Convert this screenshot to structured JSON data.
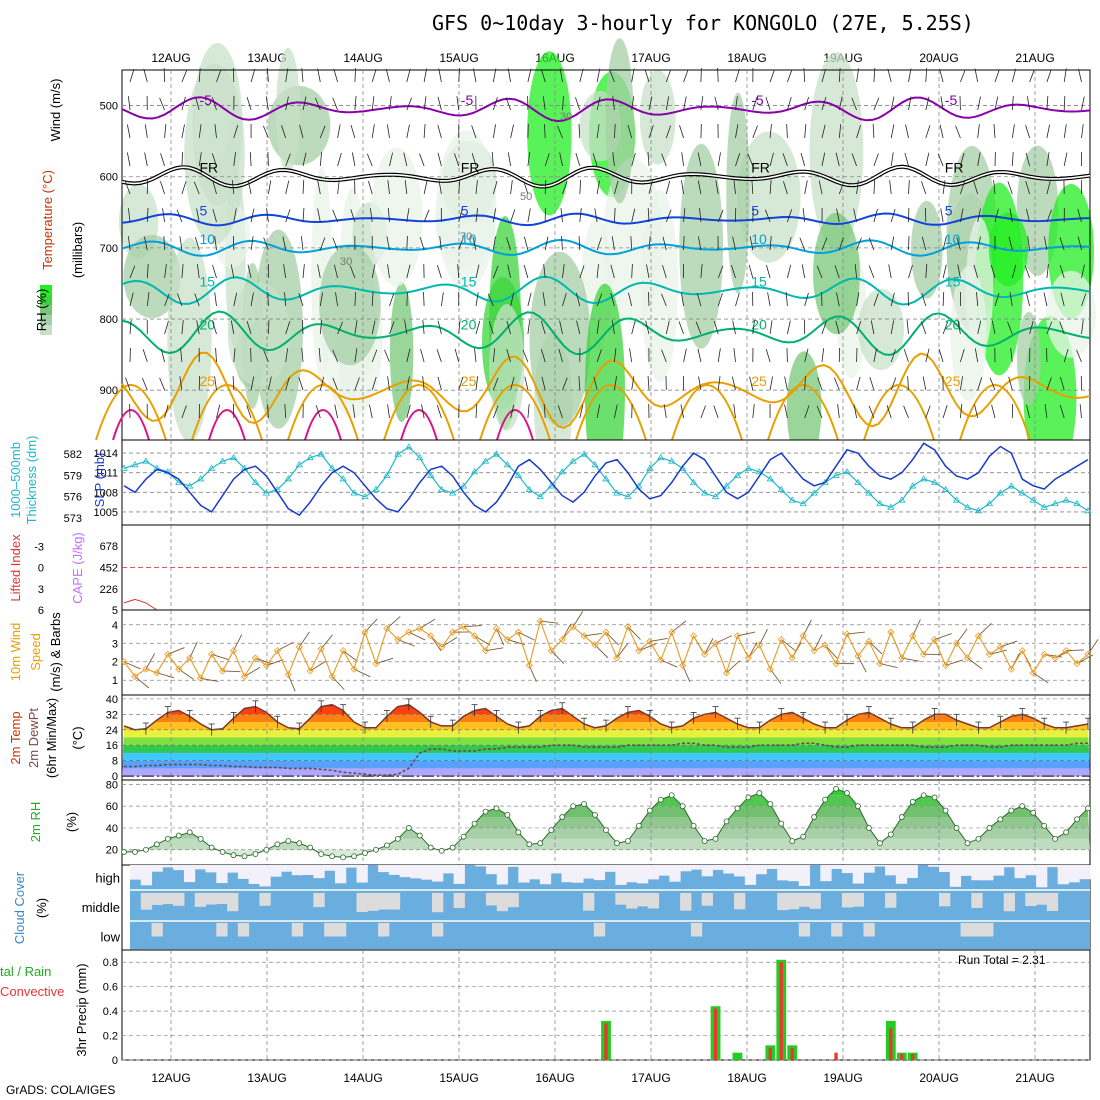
{
  "title": "GFS 0~10day 3-hourly for KONGOLO (27E, 5.25S)",
  "footer": "GrADS: COLA/IGES",
  "run_total_label": "Run Total = 2.31",
  "dates": [
    "12AUG",
    "13AUG",
    "14AUG",
    "15AUG",
    "16AUG",
    "17AUG",
    "18AUG",
    "19AUG",
    "20AUG",
    "21AUG"
  ],
  "panel_labels": {
    "p1_wind": "Wind (m/s)",
    "p1_temp": "Temperature (°C)",
    "p1_mb": "(millibars)",
    "p1_rh": "RH (%)",
    "p2_thick": "1000–500mb",
    "p2_thick2": "Thickness (dm)",
    "p2_slp": "SLP (mb)",
    "p3_li": "Lifted Index",
    "p3_cape": "CAPE (J/kg)",
    "p4_a": "10m Wind",
    "p4_b": "Speed",
    "p4_c": "(m/s) & Barbs",
    "p5_a": "2m Temp",
    "p5_b": "2m DewPt",
    "p5_c": "(6hr Min/Max)",
    "p5_d": "(°C)",
    "p6_a": "2m RH",
    "p6_b": "(%)",
    "p7_a": "Cloud Cover",
    "p7_b": "(%)",
    "p8_a": "tal / Rain",
    "p8_b": "Convective",
    "p8_c": "3hr Precip (mm)"
  },
  "chart_data": [
    {
      "panel": "upper-air",
      "type": "heatmap",
      "ylabel": "(millibars)",
      "y_ticks": [
        500,
        600,
        700,
        800,
        900
      ],
      "ylim": [
        970,
        450
      ],
      "freezing_label": "FR",
      "isotherm_labels": [
        "-5",
        "5",
        "10",
        "15",
        "20",
        "25"
      ],
      "rh_labels": [
        "30",
        "50",
        "70"
      ]
    },
    {
      "panel": "thickness-slp",
      "type": "line",
      "thickness_ticks": [
        573,
        576,
        579,
        582
      ],
      "slp_ticks": [
        1005,
        1008,
        1011,
        1014
      ],
      "series": [
        {
          "name": "1000-500mb Thickness (dm)",
          "values": [
            580,
            580.5,
            581,
            580,
            579.5,
            578,
            577.5,
            578.5,
            580,
            581,
            581.5,
            580,
            578,
            576.5,
            577,
            578.5,
            580.5,
            581.5,
            582,
            580,
            578.5,
            576.5,
            576,
            577,
            579,
            582,
            583,
            581.5,
            579,
            577,
            576.5,
            577.5,
            579.5,
            581,
            582,
            580.5,
            579,
            577,
            576,
            577.5,
            579.5,
            581,
            582,
            580.5,
            578.5,
            576.5,
            576,
            577.5,
            580,
            581.5,
            581,
            580,
            578,
            576.5,
            576,
            577.5,
            579,
            580,
            579.5,
            578.5,
            577,
            575.5,
            575,
            576.5,
            578,
            579,
            579.5,
            578,
            576.5,
            575,
            574.5,
            575.5,
            577.5,
            578.5,
            578,
            577,
            575.5,
            574.5,
            574,
            575,
            576.5,
            577.5,
            576.5,
            575.5,
            574.5,
            575,
            575.5,
            575,
            574
          ]
        },
        {
          "name": "SLP (mb)",
          "values": [
            1009,
            1008,
            1010,
            1011.5,
            1011,
            1010,
            1008,
            1006,
            1005,
            1007.5,
            1010,
            1011.5,
            1012,
            1010.5,
            1008,
            1005.5,
            1004.5,
            1006.5,
            1009,
            1011,
            1012,
            1011,
            1009,
            1007,
            1005.5,
            1005,
            1007,
            1009.5,
            1011.5,
            1012,
            1010.5,
            1008,
            1006,
            1005,
            1006.5,
            1009,
            1012,
            1013,
            1011.5,
            1009.5,
            1007.5,
            1006.5,
            1008,
            1010.5,
            1012.5,
            1013,
            1011,
            1008.5,
            1007,
            1007.5,
            1009.5,
            1012,
            1014,
            1013,
            1010.5,
            1008,
            1007,
            1008,
            1010.5,
            1013,
            1014,
            1012,
            1010,
            1009,
            1009.5,
            1012,
            1014.5,
            1014,
            1012,
            1010.5,
            1010,
            1011,
            1013,
            1015.5,
            1014.5,
            1012,
            1010.5,
            1010,
            1011,
            1013.5,
            1015,
            1014,
            1010,
            1009,
            1008.5,
            1010,
            1011,
            1012,
            1013
          ]
        }
      ]
    },
    {
      "panel": "cape-li",
      "type": "bar",
      "li_ticks": [
        6,
        3,
        0,
        -3
      ],
      "cape_ticks": [
        5,
        226,
        452,
        678
      ],
      "series": [
        {
          "name": "CAPE (J/kg)",
          "values": [
            0,
            0,
            0,
            0,
            0,
            0,
            0,
            0,
            0,
            0,
            0,
            0,
            0,
            0,
            0,
            0,
            0,
            0,
            0,
            0,
            0,
            0,
            0,
            0,
            0,
            0,
            0,
            0,
            0,
            0,
            0,
            0,
            0,
            0,
            0,
            0,
            0,
            0,
            0,
            0,
            0,
            0,
            0,
            0,
            0,
            0,
            0,
            0,
            0,
            0,
            0,
            0,
            0,
            0,
            0,
            0,
            0,
            0,
            0,
            0,
            0,
            0,
            0,
            0,
            0,
            0,
            0,
            0,
            0,
            0,
            0,
            0,
            0,
            0,
            0,
            0,
            0,
            0,
            0,
            0,
            0,
            0,
            0,
            0,
            0,
            0,
            0,
            0,
            0
          ]
        },
        {
          "name": "Lifted Index",
          "values": [
            5,
            4.5,
            5,
            6,
            6,
            6,
            6,
            6,
            6,
            6,
            6,
            6,
            6,
            6,
            6,
            6,
            6,
            6,
            6,
            6,
            6,
            6,
            6,
            6,
            6,
            6,
            6,
            6,
            6,
            6,
            6,
            6,
            6,
            6,
            6,
            6,
            6,
            6,
            6,
            6,
            6,
            6,
            6,
            6,
            6,
            6,
            6,
            6,
            6,
            6,
            6,
            6,
            6,
            6,
            6,
            6,
            6,
            6,
            6,
            6,
            6,
            6,
            6,
            6,
            6,
            6,
            6,
            6,
            6,
            6,
            6,
            6,
            6,
            6,
            6,
            6,
            6,
            6,
            6,
            6,
            6,
            6,
            6,
            6,
            6,
            6,
            6,
            6,
            6
          ]
        }
      ]
    },
    {
      "panel": "wind10m",
      "type": "line",
      "y_ticks": [
        1,
        2,
        3,
        4
      ],
      "series": [
        {
          "name": "10m Wind Speed (m/s)",
          "values": [
            2,
            1.2,
            1.6,
            1.4,
            2.4,
            1.6,
            2.2,
            1.1,
            2.4,
            1.5,
            2.6,
            1.2,
            2.2,
            1.8,
            2.6,
            1.3,
            2.8,
            1.5,
            2.7,
            1.2,
            2.6,
            1.6,
            3.6,
            1.9,
            3.8,
            3.2,
            3.6,
            3.8,
            3.4,
            2.8,
            3.6,
            3.9,
            3.4,
            2.6,
            3.8,
            3.2,
            3.6,
            1.8,
            4.2,
            2.6,
            3.2,
            3.9,
            3.4,
            2.9,
            3.6,
            2.2,
            3.9,
            2.6,
            3.1,
            2.1,
            3.6,
            1.8,
            3.4,
            2.4,
            3.0,
            1.4,
            3.4,
            2.2,
            2.9,
            1.6,
            3.2,
            2.2,
            3.4,
            2.6,
            2.9,
            1.9,
            3.5,
            2.3,
            3.1,
            1.9,
            3.6,
            2.2,
            3.4,
            2.4,
            3.2,
            1.8,
            3.0,
            2.2,
            3.4,
            2.4,
            2.8,
            1.6,
            2.6,
            1.4,
            2.4,
            2.2,
            2.6,
            1.9,
            2.4
          ]
        }
      ]
    },
    {
      "panel": "temp2m",
      "type": "area",
      "ylabel": "(°C)",
      "y_ticks": [
        0,
        8,
        16,
        24,
        32,
        40
      ],
      "series": [
        {
          "name": "2m Temp",
          "values": [
            26,
            24,
            24.5,
            29,
            33,
            34,
            31,
            27,
            24,
            24.5,
            30,
            35,
            36,
            33,
            28,
            25,
            24.5,
            30,
            36,
            37,
            34,
            28,
            25,
            25,
            31,
            36,
            37,
            33,
            28,
            26,
            26,
            31,
            34,
            35,
            31,
            27,
            25,
            26,
            31,
            34,
            35,
            31,
            27,
            25,
            26,
            30,
            33,
            34,
            31,
            27,
            25,
            26,
            30,
            32,
            33,
            30,
            27,
            25,
            25,
            29,
            32,
            33,
            30,
            27,
            25,
            25,
            29,
            32,
            33,
            30,
            27,
            25,
            25,
            29,
            32,
            32,
            29,
            27,
            25,
            25,
            28,
            31,
            32,
            30,
            27,
            25,
            25,
            26,
            27
          ]
        },
        {
          "name": "2m DewPt",
          "values": [
            5,
            5,
            5.5,
            5.5,
            6,
            6,
            6,
            6,
            5.5,
            5.5,
            5,
            5,
            4.5,
            4.5,
            4.5,
            4,
            4,
            4,
            3.5,
            3,
            2,
            1.5,
            1,
            0.5,
            0.5,
            1,
            4,
            12,
            14,
            14,
            13,
            13,
            13,
            14,
            14,
            15,
            15,
            15,
            15,
            16,
            16,
            16,
            15,
            15,
            15,
            15,
            16,
            16,
            16,
            16,
            16,
            17,
            17,
            16,
            16,
            15,
            15,
            15,
            16,
            16,
            16,
            16,
            17,
            17,
            16,
            15,
            15,
            16,
            16,
            16,
            16,
            16,
            16,
            15,
            15,
            15,
            16,
            16,
            16,
            15,
            15,
            16,
            16,
            16,
            16,
            16,
            16,
            17,
            17
          ]
        }
      ]
    },
    {
      "panel": "rh2m",
      "type": "area",
      "ylabel": "(%)",
      "y_ticks": [
        20,
        40,
        60,
        80
      ],
      "series": [
        {
          "name": "2m RH",
          "values": [
            18,
            18,
            20,
            25,
            30,
            33,
            36,
            30,
            22,
            18,
            15,
            14,
            16,
            20,
            25,
            28,
            26,
            22,
            16,
            14,
            13,
            14,
            17,
            20,
            24,
            30,
            40,
            33,
            22,
            19,
            22,
            32,
            44,
            55,
            58,
            52,
            36,
            25,
            26,
            38,
            50,
            60,
            62,
            52,
            38,
            26,
            28,
            42,
            56,
            66,
            70,
            60,
            42,
            28,
            30,
            46,
            58,
            68,
            72,
            62,
            44,
            28,
            32,
            50,
            66,
            76,
            72,
            60,
            40,
            26,
            34,
            50,
            64,
            70,
            68,
            56,
            40,
            26,
            30,
            40,
            48,
            56,
            60,
            54,
            42,
            30,
            36,
            48,
            58
          ]
        }
      ]
    },
    {
      "panel": "cloud-cover",
      "type": "heatmap",
      "levels": [
        "high",
        "middle",
        "low"
      ]
    },
    {
      "panel": "precip",
      "type": "bar",
      "y_ticks": [
        0,
        0.2,
        0.4,
        0.6,
        0.8
      ],
      "ylim": [
        0,
        0.9
      ],
      "series": [
        {
          "name": "Total",
          "values": [
            0,
            0,
            0,
            0,
            0,
            0,
            0,
            0,
            0,
            0,
            0,
            0,
            0,
            0,
            0,
            0,
            0,
            0,
            0,
            0,
            0,
            0,
            0,
            0,
            0,
            0,
            0,
            0,
            0,
            0,
            0,
            0,
            0,
            0,
            0,
            0,
            0,
            0,
            0,
            0,
            0,
            0,
            0,
            0,
            0.32,
            0,
            0,
            0,
            0,
            0,
            0,
            0,
            0,
            0,
            0.44,
            0,
            0.06,
            0,
            0,
            0.12,
            0.82,
            0.12,
            0,
            0,
            0,
            0,
            0,
            0,
            0,
            0,
            0.32,
            0.06,
            0.06,
            0,
            0,
            0,
            0,
            0,
            0,
            0,
            0,
            0,
            0,
            0,
            0,
            0,
            0,
            0,
            0
          ]
        },
        {
          "name": "Convective",
          "values": [
            0,
            0,
            0,
            0,
            0,
            0,
            0,
            0,
            0,
            0,
            0,
            0,
            0,
            0,
            0,
            0,
            0,
            0,
            0,
            0,
            0,
            0,
            0,
            0,
            0,
            0,
            0,
            0,
            0,
            0,
            0,
            0,
            0,
            0,
            0,
            0,
            0,
            0,
            0,
            0,
            0,
            0,
            0,
            0,
            0.3,
            0,
            0,
            0,
            0,
            0,
            0,
            0,
            0,
            0,
            0.42,
            0,
            0,
            0,
            0,
            0.1,
            0.8,
            0.1,
            0,
            0,
            0,
            0.06,
            0,
            0,
            0,
            0,
            0.26,
            0.05,
            0.05,
            0,
            0,
            0,
            0,
            0,
            0,
            0,
            0,
            0,
            0,
            0,
            0,
            0,
            0,
            0,
            0
          ]
        }
      ]
    }
  ]
}
